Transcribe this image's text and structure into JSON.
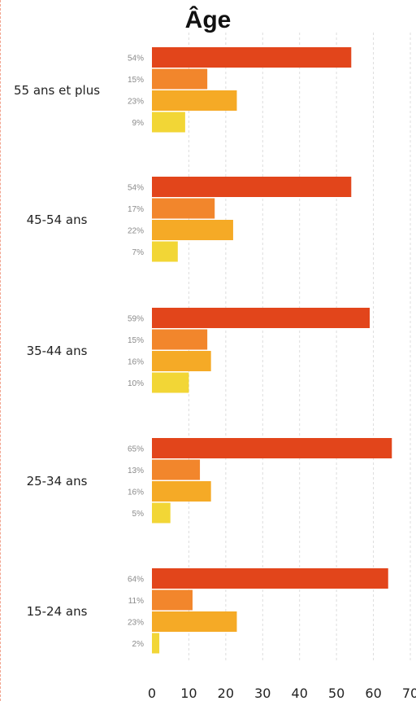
{
  "chart_data": {
    "type": "bar",
    "orientation": "horizontal",
    "title": "Âge",
    "categories": [
      "55 ans et plus",
      "45-54 ans",
      "35-44 ans",
      "25-34 ans",
      "15-24 ans"
    ],
    "series": [
      {
        "values": [
          54,
          54,
          59,
          65,
          64
        ],
        "labels": [
          "54%",
          "54%",
          "59%",
          "65%",
          "64%"
        ],
        "color": "#e2451b"
      },
      {
        "values": [
          15,
          17,
          15,
          13,
          11
        ],
        "labels": [
          "15%",
          "17%",
          "15%",
          "13%",
          "11%"
        ],
        "color": "#f2862c"
      },
      {
        "values": [
          23,
          22,
          16,
          16,
          23
        ],
        "labels": [
          "23%",
          "22%",
          "16%",
          "16%",
          "23%"
        ],
        "color": "#f5aa26"
      },
      {
        "values": [
          9,
          7,
          10,
          5,
          2
        ],
        "labels": [
          "9%",
          "7%",
          "10%",
          "5%",
          "2%"
        ],
        "color": "#f2d636"
      }
    ],
    "xlim": [
      0,
      70
    ],
    "xticks": [
      "0",
      "10",
      "20",
      "30",
      "40",
      "50",
      "60",
      "70"
    ],
    "grid": true,
    "legend": "none"
  }
}
